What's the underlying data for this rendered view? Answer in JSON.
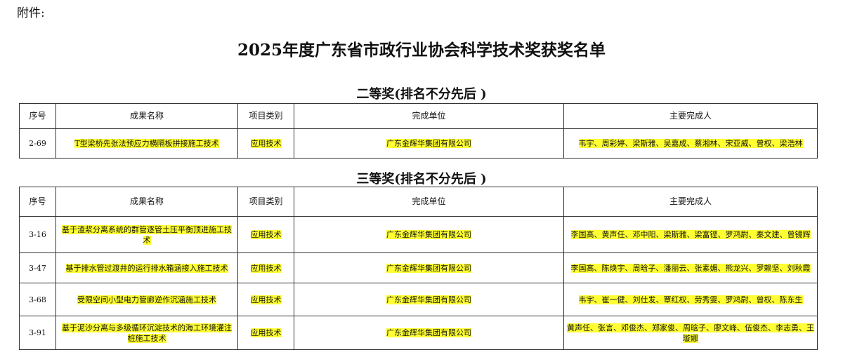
{
  "attachment_label": "附件:",
  "title": "2025年度广东省市政行业协会科学技术奖获奖名单",
  "highlight_color": "#ffff33",
  "columns": [
    "序号",
    "成果名称",
    "项目类别",
    "完成单位",
    "主要完成人"
  ],
  "sections": [
    {
      "heading": "二等奖(排名不分先后 )",
      "rows": [
        {
          "no": "2-69",
          "name": "T型梁桥先张法预应力横隔板拼接施工技术",
          "category": "应用技术",
          "unit": "广东金辉华集团有限公司",
          "people": "韦宇、周彩婷、梁斯雅、吴嘉成、蔡湘林、宋亚威、曾权、梁浩林"
        }
      ]
    },
    {
      "heading": "三等奖(排名不分先后 )",
      "rows": [
        {
          "no": "3-16",
          "name": "基于渣浆分离系统的群管逐管土压平衡顶进施工技术",
          "category": "应用技术",
          "unit": "广东金辉华集团有限公司",
          "people": "李国高、黄声任、邓中阳、梁斯雅、梁富铿、罗鸿尉、秦文建、曾镜辉"
        },
        {
          "no": "3-47",
          "name": "基于排水管过渡井的运行排水箱涵接入施工技术",
          "category": "应用技术",
          "unit": "广东金辉华集团有限公司",
          "people": "李国高、陈焕宇、周晗子、潘丽云、张素媚、熊龙兴、罗赖坚、刘秋霞"
        },
        {
          "no": "3-68",
          "name": "受限空间小型电力管廊逆作沉涵施工技术",
          "category": "应用技术",
          "unit": "广东金辉华集团有限公司",
          "people": "韦宇、崔一健、刘仕发、覃红权、劳秀雯、罗鸿尉、曾权、陈东生"
        },
        {
          "no": "3-91",
          "name": "基于泥沙分离与多级循环沉淀技术的海工环境灌注桩施工技术",
          "category": "应用技术",
          "unit": "广东金辉华集团有限公司",
          "people": "黄声任、张言、邓俊杰、郑家俊、周晗子、廖文峰、伍俊杰、李志勇、王璇娜"
        }
      ]
    }
  ]
}
